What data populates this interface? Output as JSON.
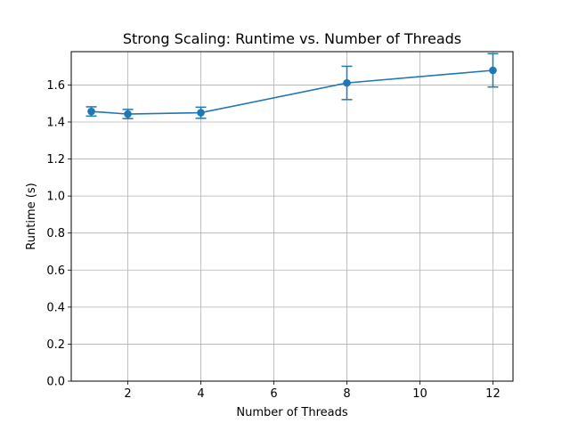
{
  "chart_data": {
    "type": "line",
    "title": "Strong Scaling: Runtime vs. Number of Threads",
    "xlabel": "Number of Threads",
    "ylabel": "Runtime (s)",
    "xlim": [
      0.45,
      12.55
    ],
    "ylim": [
      0.0,
      1.78
    ],
    "x_ticks": [
      2,
      4,
      6,
      8,
      10,
      12
    ],
    "y_ticks": [
      0.0,
      0.2,
      0.4,
      0.6,
      0.8,
      1.0,
      1.2,
      1.4,
      1.6
    ],
    "x_tick_labels": [
      "2",
      "4",
      "6",
      "8",
      "10",
      "12"
    ],
    "y_tick_labels": [
      "0.0",
      "0.2",
      "0.4",
      "0.6",
      "0.8",
      "1.0",
      "1.2",
      "1.4",
      "1.6"
    ],
    "grid": true,
    "series": [
      {
        "x": [
          1,
          2,
          4,
          8,
          12
        ],
        "values": [
          1.457,
          1.443,
          1.45,
          1.611,
          1.679
        ],
        "error": [
          0.025,
          0.025,
          0.03,
          0.09,
          0.09
        ],
        "color": "#1f77b4",
        "marker": "circle"
      }
    ]
  }
}
